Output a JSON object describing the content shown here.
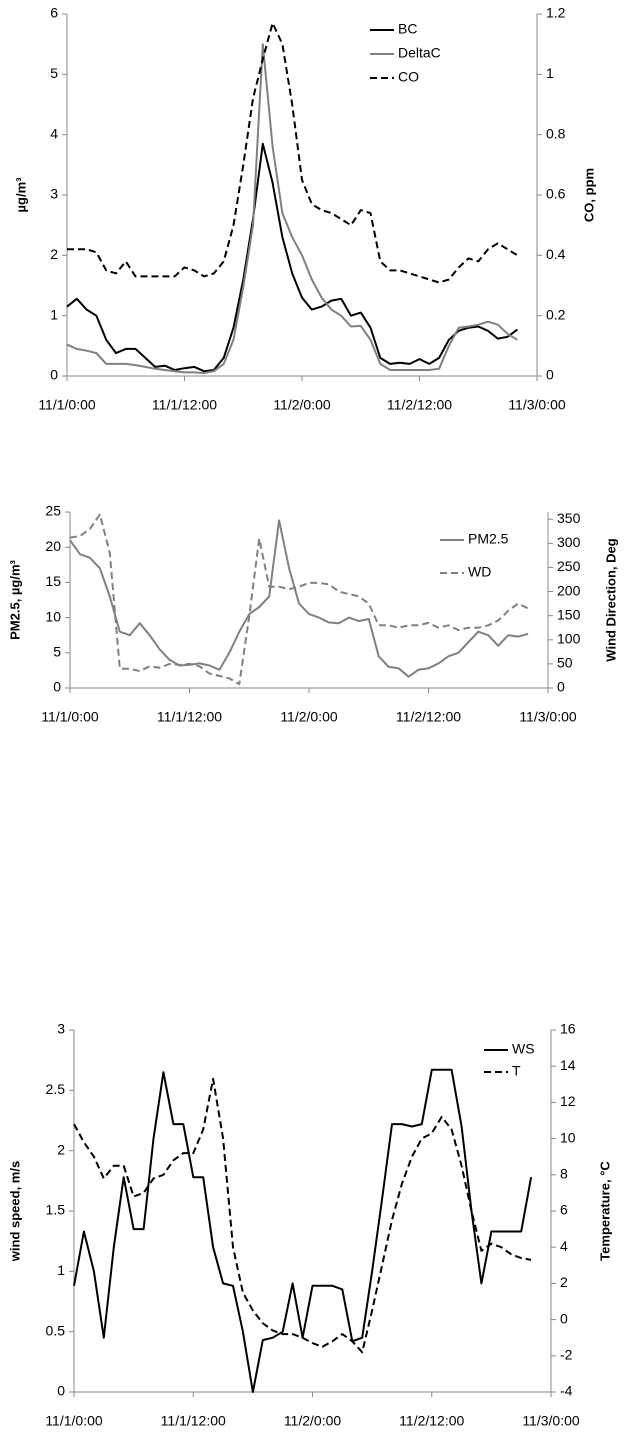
{
  "chart_data": [
    {
      "type": "line",
      "x": [
        0,
        1,
        2,
        3,
        4,
        5,
        6,
        7,
        8,
        9,
        10,
        11,
        12,
        13,
        14,
        15,
        16,
        17,
        18,
        19,
        20,
        21,
        22,
        23,
        24,
        25,
        26,
        27,
        28,
        29,
        30,
        31,
        32,
        33,
        34,
        35,
        36,
        37,
        38,
        39,
        40,
        41,
        42,
        43,
        44,
        45,
        46
      ],
      "xlim": [
        0,
        48
      ],
      "xticks": [
        {
          "value": 0,
          "label": "11/1/0:00"
        },
        {
          "value": 12,
          "label": "11/1/12:00"
        },
        {
          "value": 24,
          "label": "11/2/0:00"
        },
        {
          "value": 36,
          "label": "11/2/12:00"
        },
        {
          "value": 48,
          "label": "11/3/0:00"
        }
      ],
      "y_label": "µg/m³",
      "y2_label": "CO, ppm",
      "ylim": [
        0,
        6
      ],
      "yticks": [
        0,
        1,
        2,
        3,
        4,
        5,
        6
      ],
      "y2lim": [
        0,
        1.2
      ],
      "y2ticks": [
        0,
        0.2,
        0.4,
        0.6,
        0.8,
        1,
        1.2
      ],
      "legend": "upper right",
      "series": [
        {
          "name": "BC",
          "color": "#000000",
          "dashed": false,
          "values": [
            1.15,
            1.28,
            1.1,
            1.0,
            0.6,
            0.38,
            0.45,
            0.45,
            0.3,
            0.15,
            0.17,
            0.1,
            0.13,
            0.15,
            0.08,
            0.1,
            0.3,
            0.8,
            1.6,
            2.6,
            3.85,
            3.2,
            2.3,
            1.7,
            1.3,
            1.1,
            1.15,
            1.25,
            1.28,
            1.0,
            1.05,
            0.8,
            0.3,
            0.2,
            0.22,
            0.2,
            0.28,
            0.2,
            0.3,
            0.6,
            0.75,
            0.8,
            0.82,
            0.75,
            0.62,
            0.65,
            0.77
          ]
        },
        {
          "name": "DeltaC",
          "color": "#808080",
          "dashed": false,
          "values": [
            0.52,
            0.45,
            0.42,
            0.38,
            0.2,
            0.2,
            0.2,
            0.18,
            0.15,
            0.12,
            0.1,
            0.08,
            0.06,
            0.06,
            0.05,
            0.08,
            0.2,
            0.6,
            1.48,
            2.5,
            5.5,
            3.8,
            2.7,
            2.3,
            2.0,
            1.6,
            1.3,
            1.1,
            1.0,
            0.82,
            0.83,
            0.6,
            0.2,
            0.1,
            0.1,
            0.1,
            0.1,
            0.1,
            0.12,
            0.5,
            0.8,
            0.82,
            0.85,
            0.9,
            0.85,
            0.7,
            0.6
          ]
        },
        {
          "name": "CO",
          "color": "#000000",
          "dashed": true,
          "axis": "y2",
          "values": [
            0.42,
            0.42,
            0.42,
            0.41,
            0.35,
            0.34,
            0.38,
            0.33,
            0.33,
            0.33,
            0.33,
            0.33,
            0.36,
            0.35,
            0.33,
            0.34,
            0.38,
            0.5,
            0.7,
            0.92,
            1.05,
            1.17,
            1.1,
            0.9,
            0.65,
            0.57,
            0.55,
            0.54,
            0.52,
            0.5,
            0.55,
            0.54,
            0.38,
            0.35,
            0.35,
            0.34,
            0.33,
            0.32,
            0.31,
            0.32,
            0.36,
            0.39,
            0.38,
            0.42,
            0.44,
            0.42,
            0.4
          ]
        }
      ]
    },
    {
      "type": "line",
      "x": [
        0,
        1,
        2,
        3,
        4,
        5,
        6,
        7,
        8,
        9,
        10,
        11,
        12,
        13,
        14,
        15,
        16,
        17,
        18,
        19,
        20,
        21,
        22,
        23,
        24,
        25,
        26,
        27,
        28,
        29,
        30,
        31,
        32,
        33,
        34,
        35,
        36,
        37,
        38,
        39,
        40,
        41,
        42,
        43,
        44,
        45,
        46
      ],
      "xlim": [
        0,
        48
      ],
      "xticks": [
        {
          "value": 0,
          "label": "11/1/0:00"
        },
        {
          "value": 12,
          "label": "11/1/12:00"
        },
        {
          "value": 24,
          "label": "11/2/0:00"
        },
        {
          "value": 36,
          "label": "11/2/12:00"
        },
        {
          "value": 48,
          "label": "11/3/0:00"
        }
      ],
      "y_label": "PM2.5, µg/m³",
      "y2_label": "Wind Direction, Deg",
      "ylim": [
        0,
        25
      ],
      "yticks": [
        0,
        5,
        10,
        15,
        20,
        25
      ],
      "y2lim": [
        0,
        365
      ],
      "y2ticks": [
        0,
        50,
        100,
        150,
        200,
        250,
        300,
        350
      ],
      "legend": "upper right",
      "series": [
        {
          "name": "PM2.5",
          "color": "#808080",
          "dashed": false,
          "values": [
            21,
            19,
            18.5,
            17,
            13,
            8,
            7.5,
            9.2,
            7.5,
            5.5,
            4,
            3.2,
            3.3,
            3.5,
            3.2,
            2.6,
            5,
            8,
            10.5,
            11.5,
            13,
            23.8,
            17,
            12,
            10.5,
            10,
            9.3,
            9.2,
            10,
            9.5,
            9.8,
            4.5,
            3,
            2.8,
            1.6,
            2.6,
            2.8,
            3.5,
            4.5,
            5,
            6.5,
            8,
            7.5,
            6,
            7.5,
            7.3,
            7.7
          ]
        },
        {
          "name": "WD",
          "color": "#808080",
          "dashed": true,
          "axis": "y2",
          "values": [
            312,
            315,
            330,
            360,
            280,
            40,
            40,
            35,
            45,
            42,
            50,
            48,
            50,
            45,
            30,
            25,
            20,
            8,
            150,
            310,
            210,
            210,
            205,
            210,
            218,
            218,
            215,
            200,
            195,
            190,
            175,
            130,
            130,
            125,
            130,
            130,
            135,
            125,
            130,
            120,
            125,
            125,
            130,
            140,
            160,
            175,
            165
          ]
        }
      ]
    },
    {
      "type": "line",
      "x": [
        0,
        1,
        2,
        3,
        4,
        5,
        6,
        7,
        8,
        9,
        10,
        11,
        12,
        13,
        14,
        15,
        16,
        17,
        18,
        19,
        20,
        21,
        22,
        23,
        24,
        25,
        26,
        27,
        28,
        29,
        30,
        31,
        32,
        33,
        34,
        35,
        36,
        37,
        38,
        39,
        40,
        41,
        42,
        43,
        44,
        45,
        46
      ],
      "xlim": [
        0,
        48
      ],
      "xticks": [
        {
          "value": 0,
          "label": "11/1/0:00"
        },
        {
          "value": 12,
          "label": "11/1/12:00"
        },
        {
          "value": 24,
          "label": "11/2/0:00"
        },
        {
          "value": 36,
          "label": "11/2/12:00"
        },
        {
          "value": 48,
          "label": "11/3/0:00"
        }
      ],
      "y_label": "wind speed, m/s",
      "y2_label": "Temperature, °C",
      "ylim": [
        0,
        3
      ],
      "yticks": [
        0,
        0.5,
        1,
        1.5,
        2,
        2.5,
        3
      ],
      "y2lim": [
        -4,
        16
      ],
      "y2ticks": [
        -4,
        -2,
        0,
        2,
        4,
        6,
        8,
        10,
        12,
        14,
        16
      ],
      "legend": "upper right",
      "series": [
        {
          "name": "WS",
          "color": "#000000",
          "dashed": false,
          "values": [
            0.88,
            1.33,
            1.0,
            0.45,
            1.2,
            1.78,
            1.35,
            1.35,
            2.1,
            2.65,
            2.22,
            2.22,
            1.78,
            1.78,
            1.2,
            0.9,
            0.88,
            0.5,
            0.0,
            0.43,
            0.45,
            0.5,
            0.9,
            0.45,
            0.88,
            0.88,
            0.88,
            0.85,
            0.42,
            0.45,
            1.0,
            1.6,
            2.22,
            2.22,
            2.2,
            2.22,
            2.67,
            2.67,
            2.67,
            2.2,
            1.5,
            0.9,
            1.33,
            1.33,
            1.33,
            1.33,
            1.78
          ]
        },
        {
          "name": "T",
          "color": "#000000",
          "dashed": true,
          "axis": "y2",
          "values": [
            10.8,
            9.8,
            9,
            7.8,
            8.5,
            8.5,
            6.8,
            7,
            7.8,
            8,
            8.8,
            9.2,
            9.2,
            10.5,
            13.3,
            10,
            4,
            1.5,
            0.5,
            -0.2,
            -0.6,
            -0.8,
            -0.8,
            -1,
            -1.3,
            -1.5,
            -1.2,
            -0.8,
            -1.2,
            -1.8,
            0.5,
            3,
            5.5,
            7.5,
            9,
            10,
            10.3,
            11.2,
            10.5,
            8.5,
            6,
            3.8,
            4.2,
            4,
            3.6,
            3.4,
            3.3
          ]
        }
      ]
    }
  ]
}
